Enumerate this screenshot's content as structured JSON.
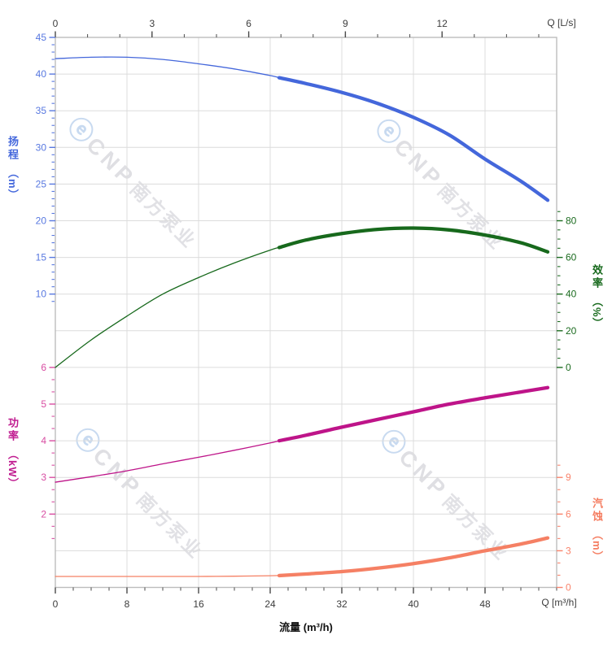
{
  "chart": {
    "watermark": {
      "logo": "ⓔ",
      "text": "CNP",
      "text_cn": "南方泵业"
    }
  },
  "chart_data": {
    "type": "line",
    "title": "",
    "grid": true,
    "colors": {
      "grid": "#dcdcdc",
      "frame": "#bdbdbd",
      "axis_text": "#3c3c3c",
      "xtick": "#4a4a4a"
    },
    "x_axis": {
      "label": "流量 (m³/h)",
      "corner_label": "Q [m³/h]",
      "unit": "m³/h",
      "min": 0,
      "max": 56,
      "tick_labels": [
        0,
        8,
        16,
        24,
        32,
        40,
        48
      ],
      "minor_step": 2,
      "minor_range": [
        0,
        56
      ]
    },
    "x_axis_top": {
      "label": "Q [L/s]",
      "unit": "L/s",
      "min": 0,
      "max": 15.556,
      "tick_labels": [
        0,
        3,
        6,
        9,
        12
      ],
      "minor_step": 1,
      "minor_range": [
        0,
        15
      ]
    },
    "y_axes": {
      "head": {
        "title": "扬程",
        "unit": "（m）",
        "side": "left",
        "color": "#4467db",
        "label_color": "#5878e0",
        "tick_labels": [
          45,
          40,
          35,
          30,
          25,
          20,
          15,
          10
        ],
        "top_value": 45,
        "units_per_division": 5,
        "minor_step": 1,
        "minor_range": [
          9,
          45
        ]
      },
      "eff": {
        "title": "效率",
        "unit": "（%）",
        "side": "right",
        "color": "#17691c",
        "label_color": "#1b6b1f",
        "tick_labels": [
          80,
          60,
          40,
          20,
          0
        ],
        "top_value": 180,
        "units_per_division": 20,
        "minor_step": 5,
        "minor_range": [
          0,
          85
        ]
      },
      "power": {
        "title": "功率",
        "unit": "（kW）",
        "side": "left",
        "color": "#be1489",
        "label_color": "#d84da2",
        "tick_labels": [
          6,
          5,
          4,
          3,
          2
        ],
        "top_value": 15,
        "units_per_division": 1,
        "minor_step": 0.33333,
        "minor_range": [
          1.33333,
          6
        ]
      },
      "npsh": {
        "title": "汽蚀",
        "unit": "（m）",
        "side": "right",
        "color": "#f58064",
        "label_color": "#f9836b",
        "tick_labels": [
          9,
          6,
          3,
          0
        ],
        "top_value": 45,
        "units_per_division": 3,
        "minor_step": 1,
        "minor_range": [
          0,
          10
        ]
      }
    },
    "q_values": [
      0,
      4,
      8,
      12,
      16,
      20,
      24,
      25,
      28,
      32,
      36,
      40,
      44,
      48,
      52,
      55
    ],
    "duty_split_q": 25,
    "series": [
      {
        "name": "head",
        "axis": "head",
        "values": [
          42.1,
          42.3,
          42.3,
          42.0,
          41.4,
          40.7,
          39.8,
          39.5,
          38.7,
          37.5,
          36.0,
          34.1,
          31.7,
          28.4,
          25.4,
          22.8
        ]
      },
      {
        "name": "efficiency",
        "axis": "eff",
        "values": [
          0,
          15,
          28,
          40,
          49,
          57,
          64,
          65.4,
          69.5,
          73,
          75.3,
          76,
          75,
          72.2,
          68,
          63
        ]
      },
      {
        "name": "power",
        "axis": "power",
        "values": [
          2.87,
          3.02,
          3.18,
          3.37,
          3.55,
          3.74,
          3.94,
          4.0,
          4.15,
          4.37,
          4.58,
          4.79,
          5.0,
          5.17,
          5.33,
          5.45
        ]
      },
      {
        "name": "npsh",
        "axis": "npsh",
        "values": [
          0.9,
          0.9,
          0.9,
          0.9,
          0.9,
          0.92,
          0.96,
          0.97,
          1.1,
          1.3,
          1.58,
          1.95,
          2.42,
          3.0,
          3.55,
          4.05
        ]
      }
    ]
  }
}
